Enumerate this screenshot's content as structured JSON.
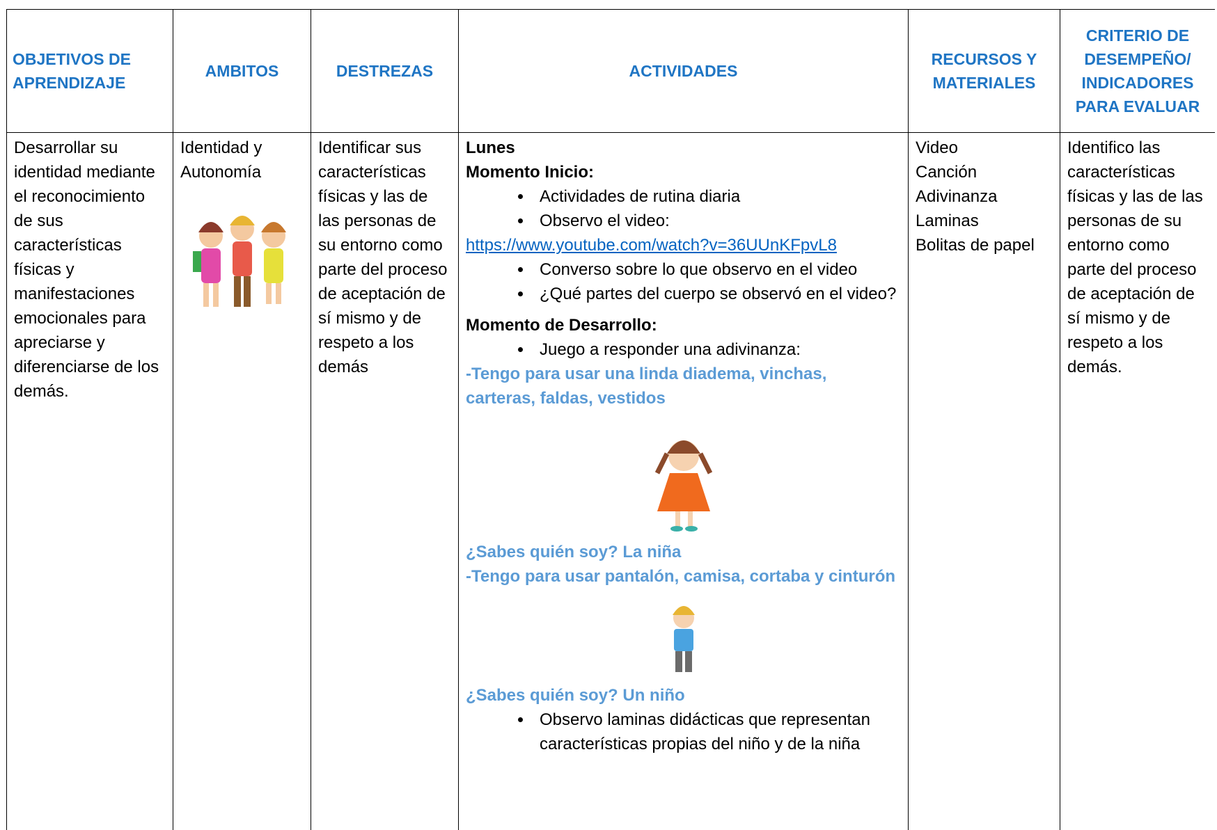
{
  "header": {
    "columns": [
      "OBJETIVOS DE APRENDIZAJE",
      "AMBITOS",
      "DESTREZAS",
      "ACTIVIDADES",
      "RECURSOS Y MATERIALES",
      "CRITERIO DE DESEMPEÑO/ INDICADORES PARA EVALUAR"
    ]
  },
  "rows": [
    {
      "objetivos": "Desarrollar su identidad mediante el reconocimiento de sus características físicas y manifestaciones emocionales para apreciarse y diferenciarse de los demás.",
      "ambitos": "Identidad y Autonomía",
      "destrezas": "Identificar sus características físicas y las de las personas de su entorno como parte del proceso de aceptación de sí mismo y de respeto a los demás",
      "actividades": {
        "day": "Lunes",
        "inicio_title": "Momento Inicio:",
        "inicio_bullets_1": [
          "Actividades de rutina diaria",
          "Observo  el video:"
        ],
        "link": "https://www.youtube.com/watch?v=36UUnKFpvL8",
        "inicio_bullets_2": [
          "Converso sobre lo que observo en el video",
          "¿Qué partes del cuerpo se observó en el video?"
        ],
        "desarrollo_title": "Momento de Desarrollo:",
        "desarrollo_bullet": "Juego a responder una adivinanza:",
        "riddle_1": "-Tengo para usar una linda diadema, vinchas, carteras, faldas, vestidos",
        "answer_1": "¿Sabes quién soy? La niña",
        "riddle_2": "-Tengo para usar pantalón, camisa, cortaba y cinturón",
        "answer_2": "¿Sabes quién soy? Un niño",
        "final_bullet": "Observo laminas didácticas que representan características propias del niño y de la niña"
      },
      "recursos": [
        "Video",
        "Canción",
        "Adivinanza",
        "Laminas",
        "Bolitas de papel"
      ],
      "criterio": "Identifico las características físicas y las de las personas de su entorno como parte del proceso de aceptación de sí mismo y de respeto a los demás."
    }
  ]
}
